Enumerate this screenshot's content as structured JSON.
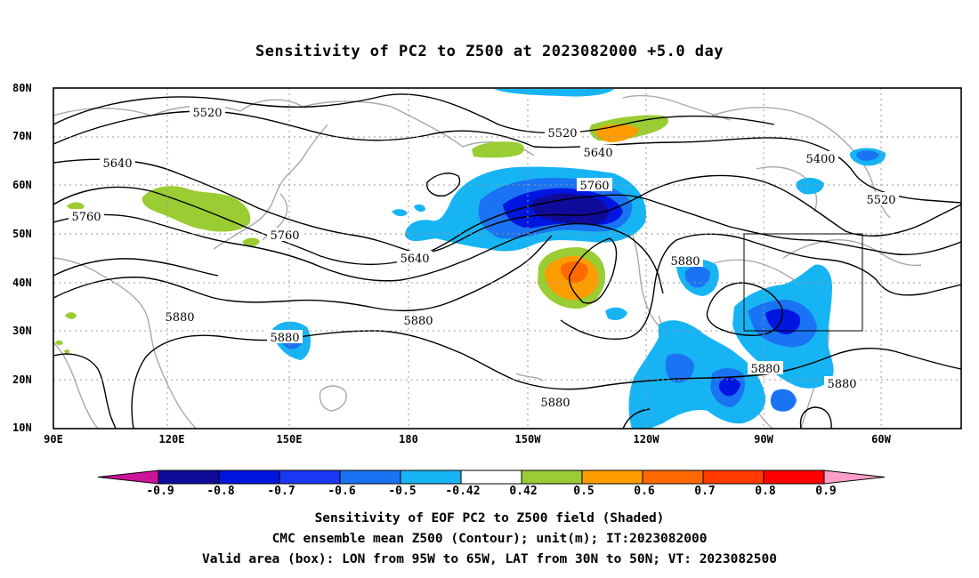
{
  "title": "Sensitivity of PC2 to Z500 at 2023082000 +5.0 day",
  "lat_labels": [
    "80N",
    "70N",
    "60N",
    "50N",
    "40N",
    "30N",
    "20N",
    "10N"
  ],
  "lon_labels": [
    "90E",
    "120E",
    "150E",
    "180",
    "150W",
    "120W",
    "90W",
    "60W"
  ],
  "contour_labels": [
    "5520",
    "5520",
    "5400",
    "5520",
    "5640",
    "5640",
    "5640",
    "5760",
    "5760",
    "5760",
    "5880",
    "5880",
    "5880",
    "5880",
    "5880",
    "5880",
    "5880"
  ],
  "colorbar": {
    "labels": [
      "-0.9",
      "-0.8",
      "-0.7",
      "-0.6",
      "-0.5",
      "-0.42",
      "0.42",
      "0.5",
      "0.6",
      "0.7",
      "0.8",
      "0.9"
    ],
    "colors": [
      "#cc1399",
      "#0f0b9b",
      "#0016e0",
      "#1938f5",
      "#1a73f2",
      "#17b4f4",
      "#ffffff",
      "#9acc33",
      "#ff9d00",
      "#ff6a00",
      "#ff3b00",
      "#ff0000",
      "#ff9ec8"
    ]
  },
  "footer": {
    "line1": "Sensitivity of EOF PC2 to Z500 field (Shaded)",
    "line2": "CMC ensemble mean Z500 (Contour); unit(m); IT:2023082000",
    "line3": "Valid area (box): LON from 95W to 65W, LAT from 30N to 50N; VT: 2023082500"
  }
}
